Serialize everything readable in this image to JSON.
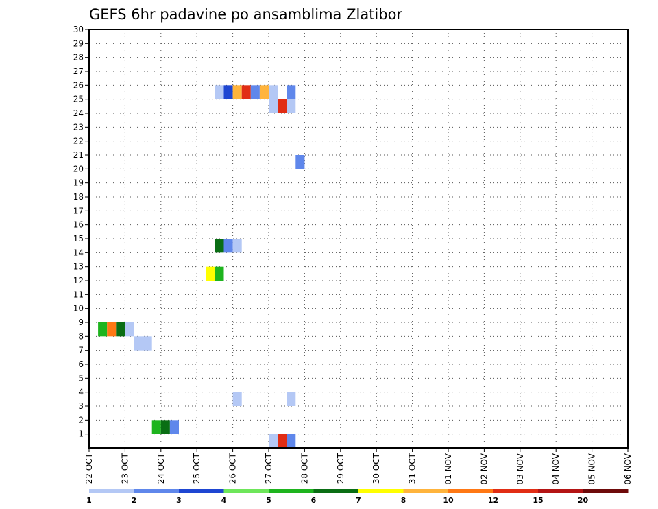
{
  "chart_data": {
    "type": "heatmap",
    "title": "GEFS 6hr padavine po ansamblima Zlatibor",
    "x_tick_labels": [
      "22 OCT",
      "23 OCT",
      "24 OCT",
      "25 OCT",
      "26 OCT",
      "27 OCT",
      "28 OCT",
      "29 OCT",
      "30 OCT",
      "31 OCT",
      "01 NOV",
      "02 NOV",
      "03 NOV",
      "04 NOV",
      "05 NOV",
      "06 NOV"
    ],
    "y_tick_labels": [
      "1",
      "2",
      "3",
      "4",
      "5",
      "6",
      "7",
      "8",
      "9",
      "10",
      "11",
      "12",
      "13",
      "14",
      "15",
      "16",
      "17",
      "18",
      "19",
      "20",
      "21",
      "22",
      "23",
      "24",
      "25",
      "26",
      "27",
      "28",
      "29",
      "30"
    ],
    "xlim_days": [
      0,
      15
    ],
    "ylim": [
      0.5,
      30.5
    ],
    "grid": true,
    "legend": {
      "position": "bottom",
      "levels": [
        "1",
        "2",
        "3",
        "4",
        "5",
        "6",
        "7",
        "8",
        "10",
        "12",
        "15",
        "20"
      ],
      "colors": [
        "#b4c8f5",
        "#5f87eb",
        "#1e46d2",
        "#6ee65a",
        "#1eb41e",
        "#0a6e14",
        "#ffff00",
        "#ffb43c",
        "#ff7814",
        "#e12d14",
        "#b41414",
        "#6e0a0a"
      ]
    },
    "cells": [
      {
        "day": 0.25,
        "member": 9,
        "level": 5
      },
      {
        "day": 0.5,
        "member": 9,
        "level": 10
      },
      {
        "day": 0.75,
        "member": 9,
        "level": 6
      },
      {
        "day": 1.0,
        "member": 9,
        "level": 1
      },
      {
        "day": 1.25,
        "member": 8,
        "level": 1
      },
      {
        "day": 1.5,
        "member": 8,
        "level": 1
      },
      {
        "day": 1.75,
        "member": 2,
        "level": 5
      },
      {
        "day": 2.0,
        "member": 2,
        "level": 6
      },
      {
        "day": 2.25,
        "member": 2,
        "level": 2
      },
      {
        "day": 3.25,
        "member": 13,
        "level": 7
      },
      {
        "day": 3.5,
        "member": 13,
        "level": 5
      },
      {
        "day": 3.5,
        "member": 15,
        "level": 6
      },
      {
        "day": 3.75,
        "member": 15,
        "level": 2
      },
      {
        "day": 4.0,
        "member": 15,
        "level": 1
      },
      {
        "day": 3.5,
        "member": 26,
        "level": 1
      },
      {
        "day": 3.75,
        "member": 26,
        "level": 3
      },
      {
        "day": 4.0,
        "member": 26,
        "level": 8
      },
      {
        "day": 4.25,
        "member": 26,
        "level": 12
      },
      {
        "day": 4.5,
        "member": 26,
        "level": 2
      },
      {
        "day": 4.75,
        "member": 26,
        "level": 8
      },
      {
        "day": 5.0,
        "member": 26,
        "level": 1
      },
      {
        "day": 5.0,
        "member": 25,
        "level": 1
      },
      {
        "day": 5.25,
        "member": 25,
        "level": 12
      },
      {
        "day": 5.5,
        "member": 25,
        "level": 1
      },
      {
        "day": 5.5,
        "member": 26,
        "level": 2
      },
      {
        "day": 4.0,
        "member": 4,
        "level": 1
      },
      {
        "day": 5.5,
        "member": 4,
        "level": 1
      },
      {
        "day": 5.0,
        "member": 1,
        "level": 1
      },
      {
        "day": 5.25,
        "member": 1,
        "level": 12
      },
      {
        "day": 5.5,
        "member": 1,
        "level": 2
      },
      {
        "day": 5.75,
        "member": 21,
        "level": 2
      }
    ]
  }
}
